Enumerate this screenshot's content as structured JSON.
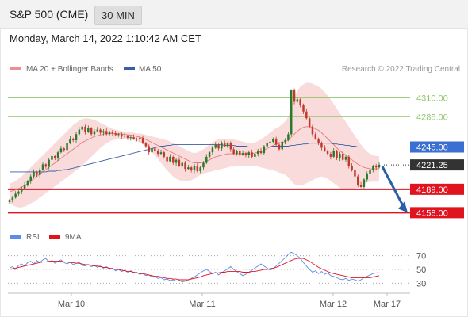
{
  "header": {
    "instrument": "S&P 500 (CME)",
    "interval": "30 MIN"
  },
  "timestamp": "Monday, March 14, 2022 1:10:42 AM CET",
  "credit": "Research © 2022 Trading Central",
  "colors": {
    "bullish": "#2b7a2b",
    "bearish": "#c0392b",
    "bollinger": "#f6b8b8",
    "ma20": "#e87a7a",
    "ma50": "#3b5ea8",
    "resistance": "#8fc66a",
    "support": "#e0141e",
    "pivot": "#3b6fd1",
    "current": "#333333",
    "rsi": "#5b8ee6",
    "rsi_ma": "#e0141e",
    "arrow": "#2a5ea8"
  },
  "chart_data": [
    {
      "type": "candlestick",
      "title": "S&P 500 (CME)",
      "legend": [
        "MA 20 + Bollinger Bands",
        "MA 50"
      ],
      "x_tick_labels": [
        "Mar 10",
        "Mar 11",
        "Mar 12",
        "Mar 17"
      ],
      "ylim": [
        4150,
        4340
      ],
      "levels": [
        {
          "value": 4310.0,
          "label": "4310.00",
          "kind": "resistance"
        },
        {
          "value": 4285.0,
          "label": "4285.00",
          "kind": "resistance"
        },
        {
          "value": 4245.0,
          "label": "4245.00",
          "kind": "pivot"
        },
        {
          "value": 4221.25,
          "label": "4221.25",
          "kind": "current"
        },
        {
          "value": 4189.0,
          "label": "4189.00",
          "kind": "support"
        },
        {
          "value": 4158.0,
          "label": "4158.00",
          "kind": "support"
        }
      ],
      "close": [
        4175,
        4178,
        4183,
        4186,
        4190,
        4195,
        4200,
        4206,
        4212,
        4208,
        4215,
        4222,
        4219,
        4228,
        4233,
        4230,
        4238,
        4243,
        4241,
        4250,
        4256,
        4254,
        4262,
        4268,
        4272,
        4265,
        4270,
        4262,
        4266,
        4268,
        4264,
        4266,
        4262,
        4265,
        4263,
        4261,
        4262,
        4259,
        4260,
        4257,
        4258,
        4256,
        4255,
        4257,
        4250,
        4246,
        4238,
        4243,
        4240,
        4236,
        4238,
        4232,
        4226,
        4232,
        4224,
        4228,
        4220,
        4224,
        4216,
        4218,
        4214,
        4220,
        4213,
        4218,
        4224,
        4232,
        4238,
        4244,
        4248,
        4243,
        4250,
        4246,
        4250,
        4242,
        4236,
        4240,
        4235,
        4237,
        4234,
        4238,
        4232,
        4236,
        4240,
        4237,
        4246,
        4250,
        4252,
        4256,
        4248,
        4242,
        4252,
        4254,
        4262,
        4320,
        4305,
        4308,
        4300,
        4292,
        4283,
        4272,
        4262,
        4256,
        4250,
        4244,
        4240,
        4236,
        4232,
        4240,
        4230,
        4236,
        4228,
        4232,
        4220,
        4214,
        4206,
        4195,
        4192,
        4202,
        4210,
        4214,
        4220,
        4218,
        4221.25
      ],
      "ma20": [
        4186,
        4187,
        4188,
        4190,
        4192,
        4194,
        4197,
        4200,
        4203,
        4206,
        4209,
        4212,
        4215,
        4218,
        4221,
        4224,
        4227,
        4230,
        4233,
        4236,
        4239,
        4242,
        4245,
        4248,
        4251,
        4253,
        4255,
        4257,
        4259,
        4260,
        4261,
        4262,
        4263,
        4263,
        4263,
        4263,
        4263,
        4262,
        4262,
        4261,
        4261,
        4260,
        4259,
        4258,
        4257,
        4255,
        4253,
        4251,
        4249,
        4247,
        4245,
        4243,
        4241,
        4239,
        4237,
        4235,
        4233,
        4231,
        4229,
        4227,
        4225,
        4224,
        4224,
        4224,
        4225,
        4226,
        4228,
        4230,
        4232,
        4233,
        4234,
        4235,
        4236,
        4236,
        4236,
        4236,
        4236,
        4236,
        4236,
        4236,
        4236,
        4237,
        4238,
        4239,
        4241,
        4243,
        4245,
        4247,
        4249,
        4250,
        4251,
        4252,
        4254,
        4258,
        4262,
        4266,
        4269,
        4271,
        4272,
        4272,
        4271,
        4269,
        4267,
        4264,
        4260,
        4256,
        4252,
        4248,
        4244,
        4240,
        4237,
        4234,
        4231,
        4228,
        4225,
        4222,
        4220,
        4218,
        4217,
        4216,
        4216,
        4216,
        4216
      ],
      "bb_upper": [
        4196,
        4198,
        4200,
        4203,
        4206,
        4210,
        4214,
        4218,
        4222,
        4226,
        4230,
        4234,
        4238,
        4242,
        4246,
        4250,
        4254,
        4258,
        4262,
        4266,
        4270,
        4274,
        4277,
        4280,
        4282,
        4283,
        4283,
        4282,
        4281,
        4279,
        4277,
        4275,
        4273,
        4271,
        4269,
        4268,
        4267,
        4266,
        4265,
        4265,
        4264,
        4264,
        4263,
        4263,
        4262,
        4261,
        4260,
        4259,
        4258,
        4257,
        4256,
        4255,
        4254,
        4252,
        4250,
        4248,
        4246,
        4244,
        4242,
        4240,
        4238,
        4237,
        4238,
        4240,
        4242,
        4245,
        4248,
        4251,
        4254,
        4255,
        4256,
        4256,
        4256,
        4256,
        4255,
        4254,
        4253,
        4252,
        4251,
        4250,
        4250,
        4251,
        4253,
        4255,
        4258,
        4261,
        4264,
        4267,
        4270,
        4272,
        4275,
        4279,
        4285,
        4300,
        4312,
        4320,
        4325,
        4328,
        4330,
        4330,
        4329,
        4327,
        4325,
        4322,
        4318,
        4313,
        4308,
        4302,
        4296,
        4290,
        4284,
        4278,
        4272,
        4266,
        4260,
        4254,
        4248,
        4243,
        4239,
        4236,
        4234,
        4233,
        4233
      ],
      "bb_lower": [
        4170,
        4168,
        4166,
        4165,
        4165,
        4166,
        4168,
        4170,
        4172,
        4175,
        4178,
        4181,
        4184,
        4187,
        4190,
        4193,
        4196,
        4199,
        4202,
        4205,
        4208,
        4211,
        4214,
        4217,
        4221,
        4224,
        4228,
        4232,
        4236,
        4240,
        4244,
        4247,
        4250,
        4252,
        4254,
        4255,
        4256,
        4256,
        4256,
        4255,
        4255,
        4254,
        4253,
        4251,
        4249,
        4246,
        4242,
        4238,
        4234,
        4229,
        4224,
        4219,
        4214,
        4210,
        4206,
        4203,
        4201,
        4200,
        4200,
        4200,
        4201,
        4203,
        4206,
        4208,
        4210,
        4211,
        4212,
        4213,
        4214,
        4215,
        4216,
        4217,
        4218,
        4219,
        4219,
        4220,
        4220,
        4220,
        4220,
        4220,
        4220,
        4220,
        4219,
        4218,
        4217,
        4216,
        4215,
        4214,
        4213,
        4211,
        4210,
        4208,
        4205,
        4200,
        4196,
        4194,
        4194,
        4195,
        4197,
        4199,
        4201,
        4203,
        4205,
        4206,
        4205,
        4203,
        4200,
        4197,
        4194,
        4191,
        4189,
        4188,
        4188,
        4189,
        4190,
        4192,
        4194,
        4196,
        4198,
        4199,
        4199,
        4199,
        4199
      ],
      "ma50": [
        4212,
        4212,
        4212,
        4212,
        4212,
        4212,
        4212,
        4212,
        4212,
        4212,
        4212,
        4212,
        4212,
        4213,
        4213,
        4213,
        4214,
        4214,
        4215,
        4215,
        4216,
        4217,
        4218,
        4219,
        4220,
        4221,
        4222,
        4223,
        4224,
        4225,
        4226,
        4227,
        4228,
        4229,
        4230,
        4231,
        4232,
        4233,
        4234,
        4235,
        4236,
        4237,
        4238,
        4239,
        4240,
        4241,
        4242,
        4243,
        4244,
        4245,
        4246,
        4246,
        4247,
        4247,
        4248,
        4248,
        4248,
        4248,
        4248,
        4248,
        4248,
        4248,
        4248,
        4248,
        4248,
        4248,
        4248,
        4248,
        4248,
        4248,
        4248,
        4247,
        4247,
        4247,
        4247,
        4246,
        4246,
        4246,
        4246,
        4245,
        4245,
        4245,
        4245,
        4245,
        4245,
        4245,
        4245,
        4246,
        4246,
        4246,
        4246,
        4246,
        4246,
        4247,
        4247,
        4248,
        4248,
        4249,
        4249,
        4250,
        4250,
        4250,
        4250,
        4250,
        4250,
        4250,
        4250,
        4249,
        4249,
        4248,
        4248,
        4247,
        4247,
        4246,
        4246,
        4245,
        4245,
        4245,
        4245,
        4245,
        4245,
        4245,
        4245
      ],
      "forecast_arrow": {
        "from": 4221.25,
        "to": 4158.0
      }
    },
    {
      "type": "line",
      "title": "",
      "legend": [
        "RSI",
        "9MA"
      ],
      "ylim": [
        20,
        80
      ],
      "y_ticks": [
        70,
        50,
        30
      ],
      "rsi": [
        52,
        54,
        50,
        56,
        58,
        55,
        60,
        62,
        58,
        63,
        60,
        64,
        66,
        61,
        63,
        59,
        62,
        64,
        60,
        58,
        61,
        57,
        59,
        60,
        56,
        55,
        57,
        54,
        56,
        53,
        55,
        52,
        54,
        50,
        52,
        48,
        50,
        47,
        49,
        46,
        48,
        45,
        46,
        43,
        44,
        41,
        42,
        39,
        40,
        37,
        38,
        35,
        36,
        34,
        35,
        33,
        34,
        32,
        33,
        35,
        37,
        39,
        42,
        45,
        48,
        50,
        47,
        44,
        46,
        42,
        45,
        48,
        51,
        54,
        50,
        47,
        44,
        41,
        43,
        46,
        49,
        52,
        55,
        58,
        55,
        52,
        49,
        51,
        55,
        59,
        63,
        67,
        72,
        75,
        73,
        70,
        66,
        60,
        55,
        50,
        46,
        48,
        44,
        47,
        43,
        45,
        41,
        40,
        38,
        36,
        35,
        37,
        34,
        36,
        35,
        33,
        35,
        38,
        40,
        42,
        44,
        45,
        45
      ],
      "rsi_ma": [
        50,
        51,
        52,
        53,
        54,
        55,
        56,
        57,
        58,
        59,
        60,
        61,
        61,
        62,
        62,
        62,
        62,
        62,
        61,
        61,
        60,
        60,
        59,
        59,
        58,
        57,
        57,
        56,
        55,
        55,
        54,
        53,
        53,
        52,
        51,
        50,
        50,
        49,
        48,
        47,
        47,
        46,
        45,
        44,
        44,
        43,
        42,
        41,
        40,
        40,
        39,
        38,
        37,
        37,
        36,
        36,
        35,
        35,
        35,
        35,
        36,
        37,
        38,
        39,
        41,
        42,
        43,
        44,
        45,
        45,
        46,
        46,
        47,
        47,
        47,
        47,
        47,
        46,
        46,
        46,
        47,
        47,
        48,
        49,
        50,
        50,
        51,
        52,
        53,
        55,
        57,
        59,
        61,
        63,
        65,
        66,
        66,
        66,
        64,
        62,
        59,
        56,
        53,
        51,
        49,
        47,
        45,
        44,
        43,
        42,
        41,
        40,
        39,
        38,
        38,
        38,
        38,
        38,
        38,
        38,
        39,
        40,
        41
      ]
    }
  ]
}
